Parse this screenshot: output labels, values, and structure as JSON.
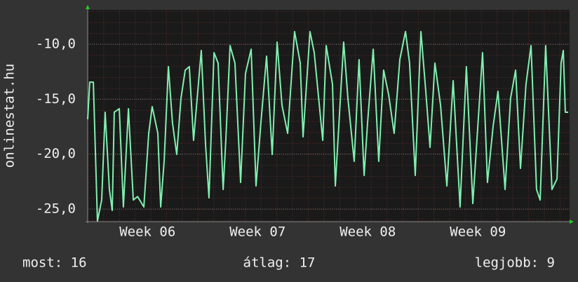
{
  "chart_data": {
    "type": "line",
    "y_label": "onlinestat.hu",
    "xlim": [
      0,
      30.63
    ],
    "xticks": [
      {
        "value": 3.8,
        "label": "Week 06"
      },
      {
        "value": 10.8,
        "label": "Week 07"
      },
      {
        "value": 17.8,
        "label": "Week 08"
      },
      {
        "value": 24.8,
        "label": "Week 09"
      }
    ],
    "ylim": [
      -26.15,
      -6.87
    ],
    "yticks": [
      {
        "value": -25,
        "label": "-25,0"
      },
      {
        "value": -20,
        "label": "-20,0"
      },
      {
        "value": -15,
        "label": "-15,0"
      },
      {
        "value": -10,
        "label": "-10,0"
      }
    ],
    "grid": true,
    "series": [
      {
        "color": "#7ff0b0",
        "x": [
          0,
          0.13,
          0.36,
          0.62,
          0.89,
          1.11,
          1.38,
          1.56,
          1.69,
          2.01,
          2.27,
          2.59,
          2.9,
          3.17,
          3.57,
          3.88,
          4.1,
          4.46,
          4.64,
          4.86,
          5.13,
          5.39,
          5.66,
          5.93,
          6.2,
          6.46,
          6.73,
          7.22,
          7.49,
          7.71,
          8.03,
          8.29,
          8.61,
          8.78,
          9.05,
          9.36,
          9.72,
          10.03,
          10.39,
          10.7,
          11.01,
          11.37,
          11.73,
          12.04,
          12.35,
          12.71,
          13.15,
          13.51,
          13.69,
          14.13,
          14.4,
          14.94,
          15.16,
          15.56,
          15.74,
          16.27,
          16.54,
          16.94,
          17.25,
          17.57,
          17.79,
          18.15,
          18.5,
          18.81,
          19.13,
          19.48,
          19.84,
          20.2,
          20.46,
          20.82,
          21.18,
          21.49,
          21.76,
          22.07,
          22.43,
          22.83,
          23.23,
          23.67,
          24.07,
          24.48,
          24.74,
          25.1,
          25.41,
          25.77,
          26.08,
          26.53,
          26.88,
          27.2,
          27.51,
          27.86,
          28.18,
          28.53,
          28.76,
          29.11,
          29.51,
          29.83,
          30.09,
          30.23,
          30.36,
          30.54
        ],
        "values": [
          -16.83,
          -13.45,
          -13.45,
          -26.09,
          -24.18,
          -16.19,
          -23.22,
          -25.13,
          -16.19,
          -15.87,
          -24.81,
          -15.87,
          -24.18,
          -23.86,
          -24.81,
          -18.11,
          -15.68,
          -18.11,
          -24.81,
          -20.66,
          -12.04,
          -17.15,
          -20.03,
          -14.92,
          -12.36,
          -12.04,
          -18.75,
          -10.57,
          -19.07,
          -23.98,
          -10.77,
          -11.72,
          -23.22,
          -18.75,
          -10.13,
          -11.72,
          -22.58,
          -12.68,
          -10.45,
          -22.9,
          -17.15,
          -11.09,
          -20.03,
          -9.81,
          -15.56,
          -18.11,
          -8.85,
          -11.72,
          -18.43,
          -8.85,
          -10.77,
          -18.75,
          -10.13,
          -13.64,
          -22.9,
          -9.81,
          -14.92,
          -20.66,
          -11.4,
          -21.94,
          -17.15,
          -10.45,
          -20.66,
          -12.36,
          -14.6,
          -18.11,
          -11.4,
          -8.85,
          -11.72,
          -21.94,
          -8.85,
          -14.28,
          -19.39,
          -11.72,
          -15.56,
          -22.9,
          -13.32,
          -24.81,
          -12.04,
          -24.5,
          -18.75,
          -10.77,
          -22.58,
          -17.47,
          -14.28,
          -23.22,
          -14.92,
          -12.36,
          -21.3,
          -13.64,
          -10.13,
          -23.22,
          -24.18,
          -10.13,
          -23.22,
          -22.26,
          -11.72,
          -10.57,
          -16.19,
          -16.19
        ]
      }
    ]
  },
  "footer": {
    "left": "most: 16",
    "center": "átlag: 17",
    "right": "legjobb: 9"
  }
}
